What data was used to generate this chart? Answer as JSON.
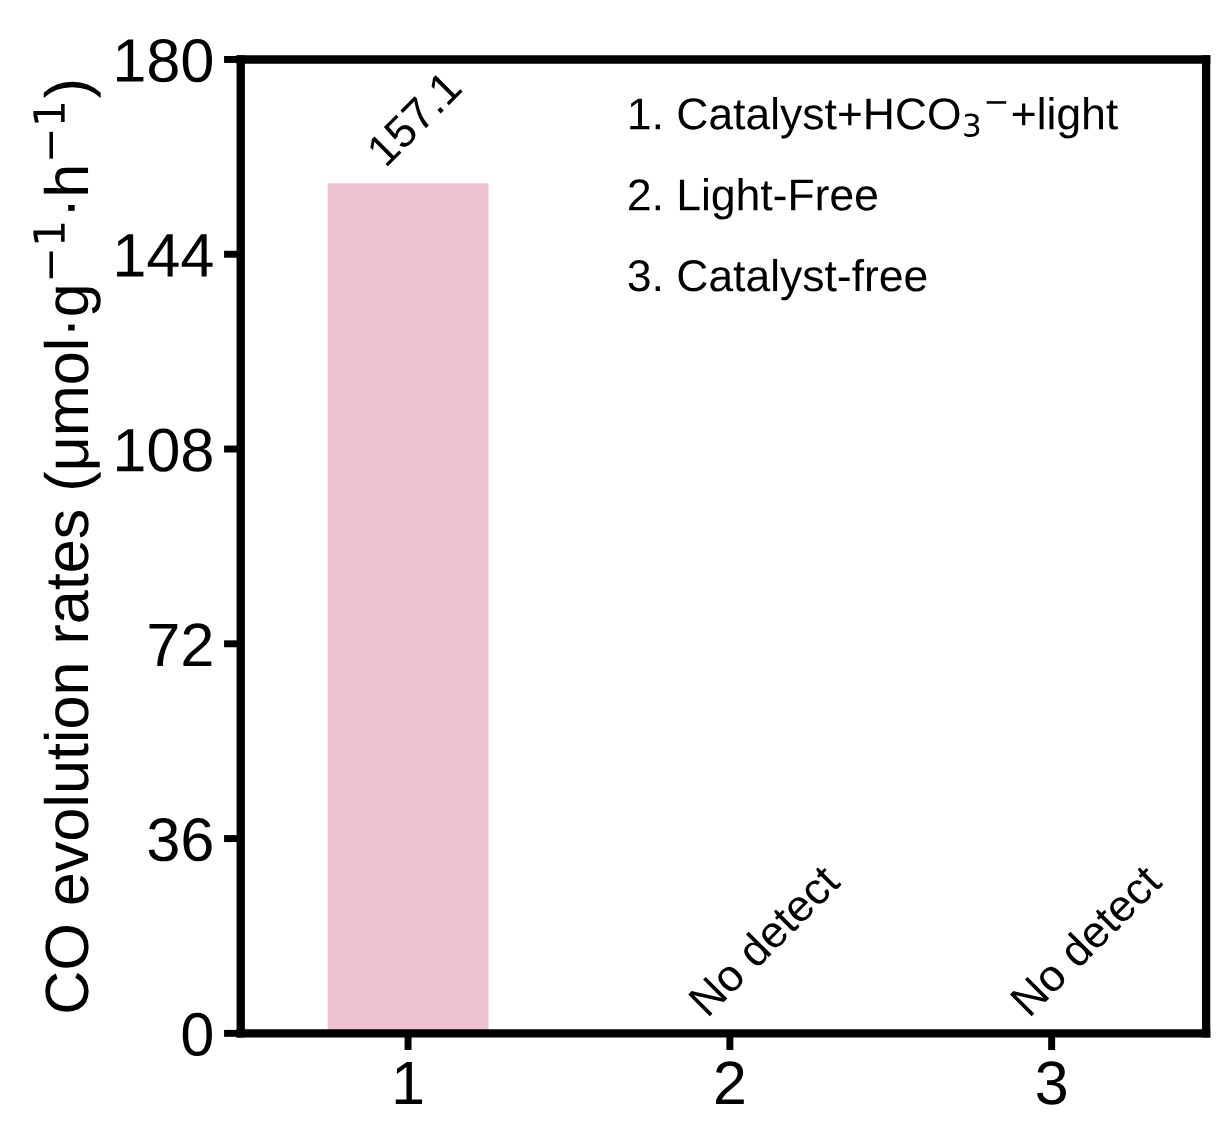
{
  "chart_data": {
    "type": "bar",
    "ylabel": "CO evolution rates (μmol·g$^{−1}$·h$^{−1}$)",
    "categories": [
      "1",
      "2",
      "3"
    ],
    "values": [
      157.1,
      0,
      0
    ],
    "value_labels": [
      "157.1",
      "No detect",
      "No detect"
    ],
    "color": "#eec3cf",
    "ylim": [
      0,
      180
    ],
    "yticks": [
      0,
      36,
      72,
      108,
      144,
      180
    ],
    "grid": false,
    "legend": false,
    "annotations": [
      "1. Catalyst+HCO$_{3}$$^{−}$+light",
      "2. Light-Free",
      "3. Catalyst-free"
    ]
  }
}
